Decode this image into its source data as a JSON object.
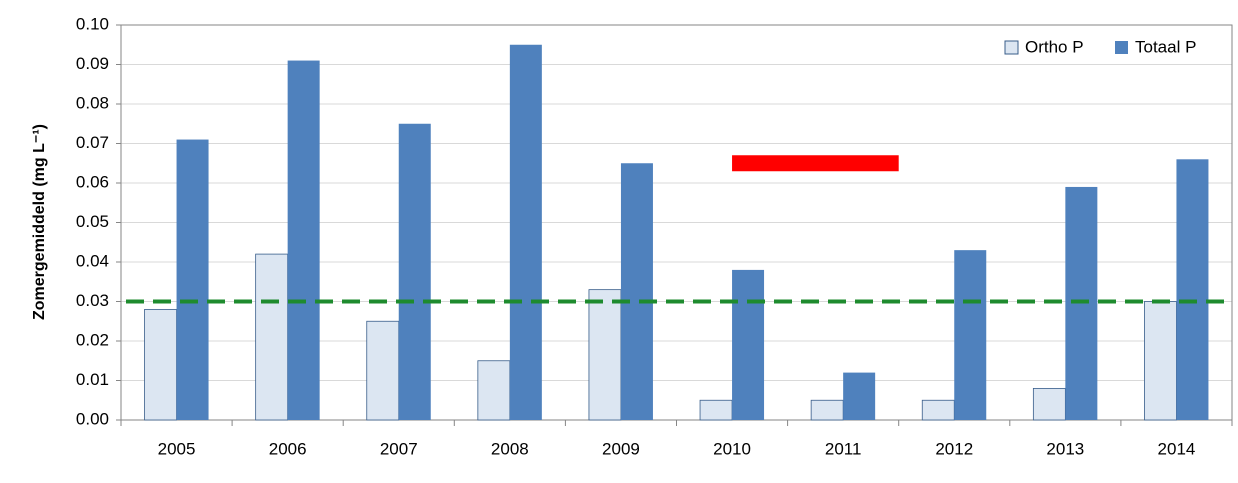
{
  "chart_data": {
    "type": "bar",
    "y_label": "Zomergemiddeld (mg L⁻¹)",
    "categories": [
      "2005",
      "2006",
      "2007",
      "2008",
      "2009",
      "2010",
      "2011",
      "2012",
      "2013",
      "2014"
    ],
    "series": [
      {
        "name": "Ortho P",
        "color": "#dce6f2",
        "values": [
          0.028,
          0.042,
          0.025,
          0.015,
          0.033,
          0.005,
          0.005,
          0.005,
          0.008,
          0.03
        ]
      },
      {
        "name": "Totaal P",
        "color": "#4f81bd",
        "values": [
          0.071,
          0.091,
          0.075,
          0.095,
          0.065,
          0.038,
          0.012,
          0.043,
          0.059,
          0.066
        ]
      }
    ],
    "ylim": [
      0,
      0.1
    ],
    "yticks": [
      {
        "value": 0,
        "label": "0.00"
      },
      {
        "value": 0.01,
        "label": "0.01"
      },
      {
        "value": 0.02,
        "label": "0.02"
      },
      {
        "value": 0.03,
        "label": "0.03"
      },
      {
        "value": 0.04,
        "label": "0.04"
      },
      {
        "value": 0.05,
        "label": "0.05"
      },
      {
        "value": 0.06,
        "label": "0.06"
      },
      {
        "value": 0.07,
        "label": "0.07"
      },
      {
        "value": 0.08,
        "label": "0.08"
      },
      {
        "value": 0.09,
        "label": "0.09"
      },
      {
        "value": 0.1,
        "label": "0.10"
      }
    ],
    "grid": true,
    "legend": "top-right",
    "reference_line": {
      "value": 0.03,
      "color": "#1e8b2e"
    },
    "highlight": {
      "value": 0.065,
      "color": "#ff0000"
    }
  }
}
